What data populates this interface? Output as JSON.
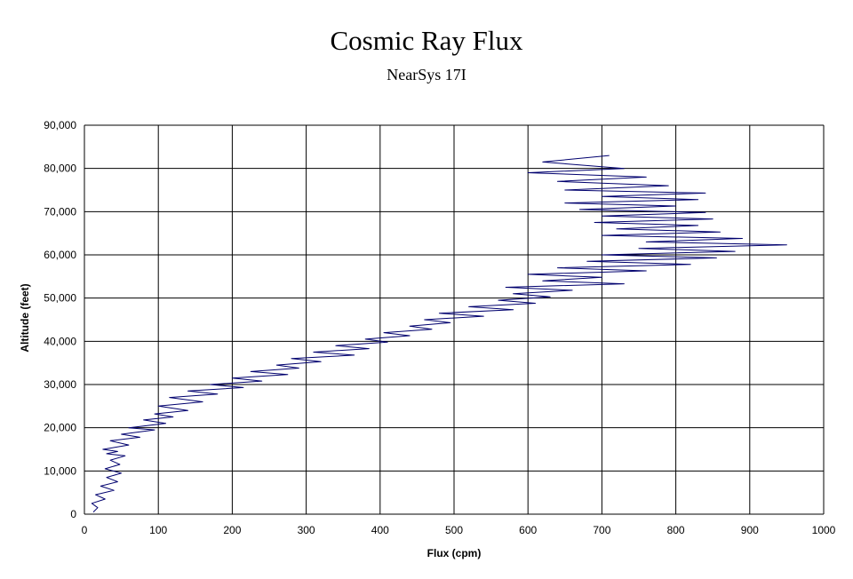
{
  "chart_data": {
    "type": "line",
    "title": "Cosmic Ray Flux",
    "subtitle": "NearSys 17I",
    "xlabel": "Flux (cpm)",
    "ylabel": "Altitude (feet)",
    "xlim": [
      0,
      1000
    ],
    "ylim": [
      0,
      90000
    ],
    "x_ticks": [
      "0",
      "100",
      "200",
      "300",
      "400",
      "500",
      "600",
      "700",
      "800",
      "900",
      "1000"
    ],
    "y_ticks": [
      "0",
      "10,000",
      "20,000",
      "30,000",
      "40,000",
      "50,000",
      "60,000",
      "70,000",
      "80,000",
      "90,000"
    ],
    "grid": true,
    "legend": "none",
    "series_color": "#00006e",
    "series": [
      {
        "x": [
          12,
          18,
          10,
          28,
          15,
          40,
          22,
          45,
          30,
          50,
          28,
          48,
          35,
          55,
          30,
          45,
          25,
          60,
          35,
          75,
          50,
          95,
          60,
          110,
          80,
          120,
          95,
          140,
          100,
          160,
          115,
          180,
          140,
          215,
          170,
          240,
          200,
          275,
          225,
          290,
          260,
          320,
          280,
          365,
          310,
          385,
          340,
          410,
          380,
          440,
          405,
          470,
          440,
          495,
          460,
          540,
          480,
          580,
          520,
          610,
          560,
          630,
          580,
          660,
          570,
          730,
          620,
          700,
          600,
          760,
          640,
          820,
          680,
          855,
          700,
          880,
          750,
          950,
          760,
          890,
          700,
          860,
          720,
          830,
          690,
          850,
          700,
          840,
          670,
          800,
          650,
          830,
          700,
          840,
          650,
          790,
          640,
          760,
          600,
          730,
          620,
          710
        ],
        "y": [
          500,
          1500,
          2500,
          3500,
          4500,
          5500,
          6500,
          7500,
          8500,
          9500,
          10500,
          11500,
          12500,
          13500,
          14000,
          14500,
          15000,
          16000,
          17000,
          17800,
          18500,
          19500,
          20000,
          21000,
          21800,
          22500,
          23200,
          24000,
          25000,
          26000,
          27000,
          27800,
          28500,
          29300,
          30000,
          30800,
          31500,
          32300,
          33000,
          33800,
          34500,
          35300,
          36000,
          36800,
          37500,
          38300,
          39000,
          39800,
          40500,
          41300,
          42000,
          42800,
          43500,
          44300,
          45000,
          45800,
          46500,
          47300,
          48000,
          48800,
          49500,
          50300,
          51000,
          51800,
          52500,
          53300,
          54000,
          54800,
          55500,
          56300,
          57000,
          57800,
          58500,
          59300,
          60000,
          60800,
          61500,
          62300,
          63000,
          63800,
          64500,
          65300,
          66000,
          66800,
          67500,
          68300,
          69000,
          69800,
          70500,
          71300,
          72000,
          72800,
          73500,
          74300,
          75000,
          76000,
          77000,
          78000,
          79000,
          80000,
          81500,
          83000
        ]
      }
    ]
  }
}
